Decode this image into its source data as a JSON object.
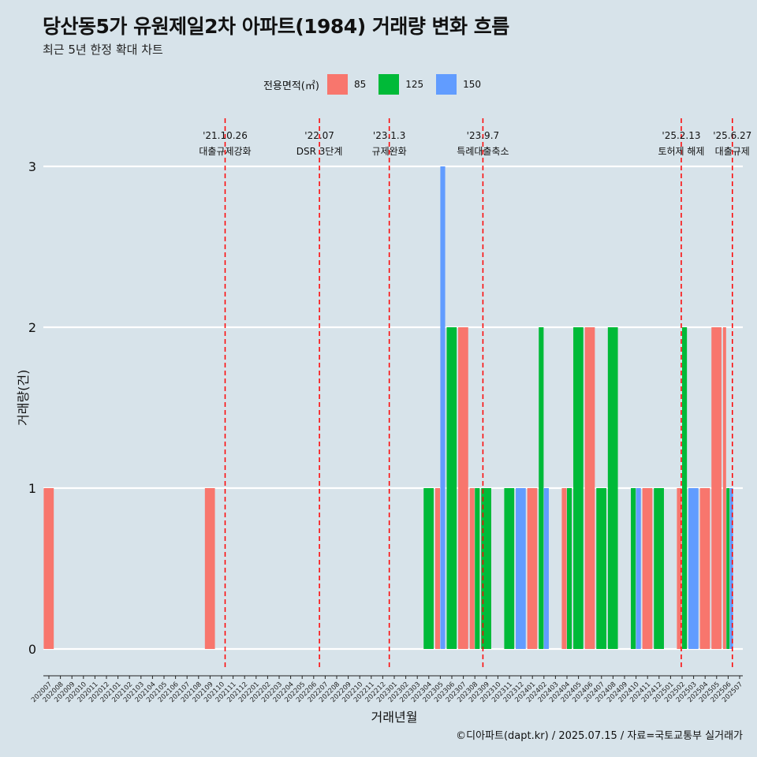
{
  "title": "당산동5가 유원제일2차 아파트(1984) 거래량 변화 흐름",
  "subtitle": "최근 5년 한정 확대 차트",
  "caption": "©디아파트(dapt.kr) / 2025.07.15 / 자료=국토교통부 실거래가",
  "colors": {
    "background": "#d7e3ea",
    "s85": "#f8766d",
    "s125": "#00ba38",
    "s150": "#619cff",
    "event_line": "#ff0000",
    "grid": "#ffffff"
  },
  "chart_data": {
    "type": "bar",
    "title": "당산동5가 유원제일2차 아파트(1984) 거래량 변화 흐름",
    "subtitle": "최근 5년 한정 확대 차트",
    "xlabel": "거래년월",
    "ylabel": "거래량(건)",
    "ylim": [
      0,
      3
    ],
    "yticks": [
      0,
      1,
      2,
      3
    ],
    "grid": true,
    "legend_position": "top",
    "legend_title": "전용면적(㎡)",
    "categories": [
      "202007",
      "202008",
      "202009",
      "202010",
      "202011",
      "202012",
      "202101",
      "202102",
      "202103",
      "202104",
      "202105",
      "202106",
      "202107",
      "202108",
      "202109",
      "202110",
      "202111",
      "202112",
      "202201",
      "202202",
      "202203",
      "202204",
      "202205",
      "202206",
      "202207",
      "202208",
      "202209",
      "202210",
      "202211",
      "202212",
      "202301",
      "202302",
      "202303",
      "202304",
      "202305",
      "202306",
      "202307",
      "202308",
      "202309",
      "202310",
      "202311",
      "202312",
      "202401",
      "202402",
      "202403",
      "202404",
      "202405",
      "202406",
      "202407",
      "202408",
      "202409",
      "202410",
      "202411",
      "202412",
      "202501",
      "202502",
      "202503",
      "202504",
      "202505",
      "202506",
      "202507"
    ],
    "series": [
      {
        "name": "85",
        "color": "#f8766d",
        "values": [
          1,
          0,
          0,
          0,
          0,
          0,
          0,
          0,
          0,
          0,
          0,
          0,
          0,
          0,
          1,
          0,
          0,
          0,
          0,
          0,
          0,
          0,
          0,
          0,
          0,
          0,
          0,
          0,
          0,
          0,
          0,
          0,
          0,
          0,
          1,
          0,
          2,
          1,
          0,
          0,
          0,
          0,
          1,
          0,
          0,
          1,
          0,
          2,
          0,
          0,
          0,
          0,
          1,
          0,
          0,
          1,
          0,
          1,
          2,
          2,
          0
        ]
      },
      {
        "name": "125",
        "color": "#00ba38",
        "values": [
          0,
          0,
          0,
          0,
          0,
          0,
          0,
          0,
          0,
          0,
          0,
          0,
          0,
          0,
          0,
          0,
          0,
          0,
          0,
          0,
          0,
          0,
          0,
          0,
          0,
          0,
          0,
          0,
          0,
          0,
          0,
          0,
          0,
          1,
          0,
          2,
          0,
          1,
          1,
          0,
          1,
          0,
          0,
          2,
          0,
          1,
          2,
          0,
          1,
          2,
          0,
          1,
          0,
          1,
          0,
          2,
          0,
          0,
          0,
          1,
          0
        ]
      },
      {
        "name": "150",
        "color": "#619cff",
        "values": [
          0,
          0,
          0,
          0,
          0,
          0,
          0,
          0,
          0,
          0,
          0,
          0,
          0,
          0,
          0,
          0,
          0,
          0,
          0,
          0,
          0,
          0,
          0,
          0,
          0,
          0,
          0,
          0,
          0,
          0,
          0,
          0,
          0,
          0,
          3,
          0,
          0,
          0,
          0,
          0,
          0,
          1,
          0,
          1,
          0,
          0,
          0,
          0,
          0,
          0,
          0,
          1,
          0,
          0,
          0,
          0,
          1,
          0,
          0,
          1,
          0
        ]
      }
    ],
    "events": [
      {
        "date": "'21.10.26",
        "label": "대출규제강화",
        "x": "2021-10-26"
      },
      {
        "date": "'22.07",
        "label": "DSR 3단계",
        "x": "2022-07-01"
      },
      {
        "date": "'23.1.3",
        "label": "규제완화",
        "x": "2023-01-03"
      },
      {
        "date": "'23.9.7",
        "label": "특례대출축소",
        "x": "2023-09-07"
      },
      {
        "date": "'25.2.13",
        "label": "토허제 해제",
        "x": "2025-02-13"
      },
      {
        "date": "'25.6.27",
        "label": "대출규제",
        "x": "2025-06-27"
      }
    ]
  }
}
